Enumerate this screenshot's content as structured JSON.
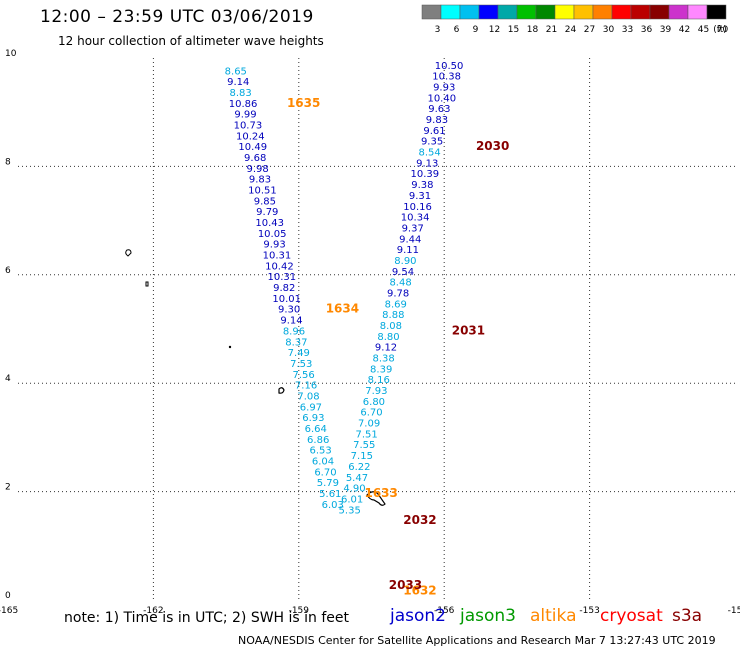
{
  "header": {
    "title": "12:00 – 23:59 UTC 03/06/2019",
    "subtitle": "12 hour collection of altimeter wave heights"
  },
  "legend": {
    "unit": "(ft)",
    "bins": [
      {
        "label": "3",
        "color": "#7f7f7f"
      },
      {
        "label": "6",
        "color": "#00ffff"
      },
      {
        "label": "9",
        "color": "#00c0f0"
      },
      {
        "label": "12",
        "color": "#0000ff"
      },
      {
        "label": "15",
        "color": "#00a8a8"
      },
      {
        "label": "18",
        "color": "#00c000"
      },
      {
        "label": "21",
        "color": "#008800"
      },
      {
        "label": "24",
        "color": "#ffff00"
      },
      {
        "label": "27",
        "color": "#ffc000"
      },
      {
        "label": "30",
        "color": "#ff8000"
      },
      {
        "label": "33",
        "color": "#ff0000"
      },
      {
        "label": "36",
        "color": "#bb0000"
      },
      {
        "label": "39",
        "color": "#880000"
      },
      {
        "label": "42",
        "color": "#cc33cc"
      },
      {
        "label": "45",
        "color": "#ff88ff"
      },
      {
        "label": "70",
        "color": "#000000"
      }
    ]
  },
  "axes": {
    "x_ticks": [
      "-165",
      "-162",
      "-159",
      "-156",
      "-153",
      "-15"
    ],
    "y_ticks": [
      "0",
      "2",
      "4",
      "6",
      "8",
      "10"
    ]
  },
  "colors": {
    "jason2": "#0000cc",
    "jason3": "#009900",
    "altika": "#ff8800",
    "cryosat": "#ff0000",
    "s3a": "#880000",
    "light": "#00a8dd",
    "dark": "#0000bb"
  },
  "chart_data": {
    "type": "scatter",
    "xlim": [
      -165,
      -150
    ],
    "ylim": [
      0,
      10
    ],
    "grid": true,
    "track_a": {
      "satellite": "altika",
      "times": [
        {
          "label": "1635",
          "x": -158.9,
          "y": 9.1
        },
        {
          "label": "1634",
          "x": -158.1,
          "y": 5.3
        },
        {
          "label": "1633",
          "x": -157.3,
          "y": 1.9
        },
        {
          "label": "1632",
          "x": -156.5,
          "y": 0.1
        }
      ],
      "points": [
        {
          "x": -160.3,
          "y": 9.7,
          "v": "8.65",
          "c": "light"
        },
        {
          "x": -160.25,
          "y": 9.5,
          "v": "9.14",
          "c": "dark"
        },
        {
          "x": -160.2,
          "y": 9.3,
          "v": "8.83",
          "c": "light"
        },
        {
          "x": -160.15,
          "y": 9.1,
          "v": "10.86",
          "c": "dark"
        },
        {
          "x": -160.1,
          "y": 8.9,
          "v": "9.99",
          "c": "dark"
        },
        {
          "x": -160.05,
          "y": 8.7,
          "v": "10.73",
          "c": "dark"
        },
        {
          "x": -160.0,
          "y": 8.5,
          "v": "10.24",
          "c": "dark"
        },
        {
          "x": -159.95,
          "y": 8.3,
          "v": "10.49",
          "c": "dark"
        },
        {
          "x": -159.9,
          "y": 8.1,
          "v": "9.68",
          "c": "dark"
        },
        {
          "x": -159.85,
          "y": 7.9,
          "v": "9.98",
          "c": "dark"
        },
        {
          "x": -159.8,
          "y": 7.7,
          "v": "9.83",
          "c": "dark"
        },
        {
          "x": -159.75,
          "y": 7.5,
          "v": "10.51",
          "c": "dark"
        },
        {
          "x": -159.7,
          "y": 7.3,
          "v": "9.85",
          "c": "dark"
        },
        {
          "x": -159.65,
          "y": 7.1,
          "v": "9.79",
          "c": "dark"
        },
        {
          "x": -159.6,
          "y": 6.9,
          "v": "10.43",
          "c": "dark"
        },
        {
          "x": -159.55,
          "y": 6.7,
          "v": "10.05",
          "c": "dark"
        },
        {
          "x": -159.5,
          "y": 6.5,
          "v": "9.93",
          "c": "dark"
        },
        {
          "x": -159.45,
          "y": 6.3,
          "v": "10.31",
          "c": "dark"
        },
        {
          "x": -159.4,
          "y": 6.1,
          "v": "10.42",
          "c": "dark"
        },
        {
          "x": -159.35,
          "y": 5.9,
          "v": "10.31",
          "c": "dark"
        },
        {
          "x": -159.3,
          "y": 5.7,
          "v": "9.82",
          "c": "dark"
        },
        {
          "x": -159.25,
          "y": 5.5,
          "v": "10.01",
          "c": "dark"
        },
        {
          "x": -159.2,
          "y": 5.3,
          "v": "9.30",
          "c": "dark"
        },
        {
          "x": -159.15,
          "y": 5.1,
          "v": "9.14",
          "c": "dark"
        },
        {
          "x": -159.1,
          "y": 4.9,
          "v": "8.96",
          "c": "light"
        },
        {
          "x": -159.05,
          "y": 4.7,
          "v": "8.37",
          "c": "light"
        },
        {
          "x": -159.0,
          "y": 4.5,
          "v": "7.49",
          "c": "light"
        },
        {
          "x": -158.95,
          "y": 4.3,
          "v": "7.53",
          "c": "light"
        },
        {
          "x": -158.9,
          "y": 4.1,
          "v": "7.56",
          "c": "light"
        },
        {
          "x": -158.85,
          "y": 3.9,
          "v": "7.16",
          "c": "light"
        },
        {
          "x": -158.8,
          "y": 3.7,
          "v": "7.08",
          "c": "light"
        },
        {
          "x": -158.75,
          "y": 3.5,
          "v": "6.97",
          "c": "light"
        },
        {
          "x": -158.7,
          "y": 3.3,
          "v": "6.93",
          "c": "light"
        },
        {
          "x": -158.65,
          "y": 3.1,
          "v": "6.64",
          "c": "light"
        },
        {
          "x": -158.6,
          "y": 2.9,
          "v": "6.86",
          "c": "light"
        },
        {
          "x": -158.55,
          "y": 2.7,
          "v": "6.53",
          "c": "light"
        },
        {
          "x": -158.5,
          "y": 2.5,
          "v": "6.04",
          "c": "light"
        },
        {
          "x": -158.45,
          "y": 2.3,
          "v": "6.70",
          "c": "light"
        },
        {
          "x": -158.4,
          "y": 2.1,
          "v": "5.79",
          "c": "light"
        },
        {
          "x": -158.35,
          "y": 1.9,
          "v": "5.61",
          "c": "light"
        },
        {
          "x": -158.3,
          "y": 1.7,
          "v": "6.03",
          "c": "light"
        }
      ]
    },
    "track_b": {
      "satellite": "s3a",
      "times": [
        {
          "label": "2030",
          "x": -155.0,
          "y": 8.3
        },
        {
          "label": "2031",
          "x": -155.5,
          "y": 4.9
        },
        {
          "label": "2032",
          "x": -156.5,
          "y": 1.4
        },
        {
          "label": "2033",
          "x": -156.8,
          "y": 0.2
        }
      ],
      "points": [
        {
          "x": -155.9,
          "y": 9.8,
          "v": "10.50",
          "c": "dark"
        },
        {
          "x": -155.95,
          "y": 9.6,
          "v": "10.38",
          "c": "dark"
        },
        {
          "x": -156.0,
          "y": 9.4,
          "v": "9.93",
          "c": "dark"
        },
        {
          "x": -156.05,
          "y": 9.2,
          "v": "10.40",
          "c": "dark"
        },
        {
          "x": -156.1,
          "y": 9.0,
          "v": "9.63",
          "c": "dark"
        },
        {
          "x": -156.15,
          "y": 8.8,
          "v": "9.83",
          "c": "dark"
        },
        {
          "x": -156.2,
          "y": 8.6,
          "v": "9.61",
          "c": "dark"
        },
        {
          "x": -156.25,
          "y": 8.4,
          "v": "9.35",
          "c": "dark"
        },
        {
          "x": -156.3,
          "y": 8.2,
          "v": "8.54",
          "c": "light"
        },
        {
          "x": -156.35,
          "y": 8.0,
          "v": "9.13",
          "c": "dark"
        },
        {
          "x": -156.4,
          "y": 7.8,
          "v": "10.39",
          "c": "dark"
        },
        {
          "x": -156.45,
          "y": 7.6,
          "v": "9.38",
          "c": "dark"
        },
        {
          "x": -156.5,
          "y": 7.4,
          "v": "9.31",
          "c": "dark"
        },
        {
          "x": -156.55,
          "y": 7.2,
          "v": "10.16",
          "c": "dark"
        },
        {
          "x": -156.6,
          "y": 7.0,
          "v": "10.34",
          "c": "dark"
        },
        {
          "x": -156.65,
          "y": 6.8,
          "v": "9.37",
          "c": "dark"
        },
        {
          "x": -156.7,
          "y": 6.6,
          "v": "9.44",
          "c": "dark"
        },
        {
          "x": -156.75,
          "y": 6.4,
          "v": "9.11",
          "c": "dark"
        },
        {
          "x": -156.8,
          "y": 6.2,
          "v": "8.90",
          "c": "light"
        },
        {
          "x": -156.85,
          "y": 6.0,
          "v": "9.54",
          "c": "dark"
        },
        {
          "x": -156.9,
          "y": 5.8,
          "v": "8.48",
          "c": "light"
        },
        {
          "x": -156.95,
          "y": 5.6,
          "v": "9.78",
          "c": "dark"
        },
        {
          "x": -157.0,
          "y": 5.4,
          "v": "8.69",
          "c": "light"
        },
        {
          "x": -157.05,
          "y": 5.2,
          "v": "8.88",
          "c": "light"
        },
        {
          "x": -157.1,
          "y": 5.0,
          "v": "8.08",
          "c": "light"
        },
        {
          "x": -157.15,
          "y": 4.8,
          "v": "8.80",
          "c": "light"
        },
        {
          "x": -157.2,
          "y": 4.6,
          "v": "9.12",
          "c": "dark"
        },
        {
          "x": -157.25,
          "y": 4.4,
          "v": "8.38",
          "c": "light"
        },
        {
          "x": -157.3,
          "y": 4.2,
          "v": "8.39",
          "c": "light"
        },
        {
          "x": -157.35,
          "y": 4.0,
          "v": "8.16",
          "c": "light"
        },
        {
          "x": -157.4,
          "y": 3.8,
          "v": "7.93",
          "c": "light"
        },
        {
          "x": -157.45,
          "y": 3.6,
          "v": "6.80",
          "c": "light"
        },
        {
          "x": -157.5,
          "y": 3.4,
          "v": "6.70",
          "c": "light"
        },
        {
          "x": -157.55,
          "y": 3.2,
          "v": "7.09",
          "c": "light"
        },
        {
          "x": -157.6,
          "y": 3.0,
          "v": "7.51",
          "c": "light"
        },
        {
          "x": -157.65,
          "y": 2.8,
          "v": "7.55",
          "c": "light"
        },
        {
          "x": -157.7,
          "y": 2.6,
          "v": "7.15",
          "c": "light"
        },
        {
          "x": -157.75,
          "y": 2.4,
          "v": "6.22",
          "c": "light"
        },
        {
          "x": -157.8,
          "y": 2.2,
          "v": "5.47",
          "c": "light"
        },
        {
          "x": -157.85,
          "y": 2.0,
          "v": "4.90",
          "c": "light"
        },
        {
          "x": -157.9,
          "y": 1.8,
          "v": "6.01",
          "c": "light"
        },
        {
          "x": -157.95,
          "y": 1.6,
          "v": "5.35",
          "c": "light"
        }
      ]
    }
  },
  "note": "note: 1) Time is in UTC; 2) SWH is in feet",
  "satellites": {
    "jason2": "jason2",
    "jason3": "jason3",
    "altika": "altika",
    "cryosat": "cryosat",
    "s3a": "s3a"
  },
  "footer": "NOAA/NESDIS Center for Satellite Applications and Research   Mar  7 13:27:43 UTC 2019"
}
